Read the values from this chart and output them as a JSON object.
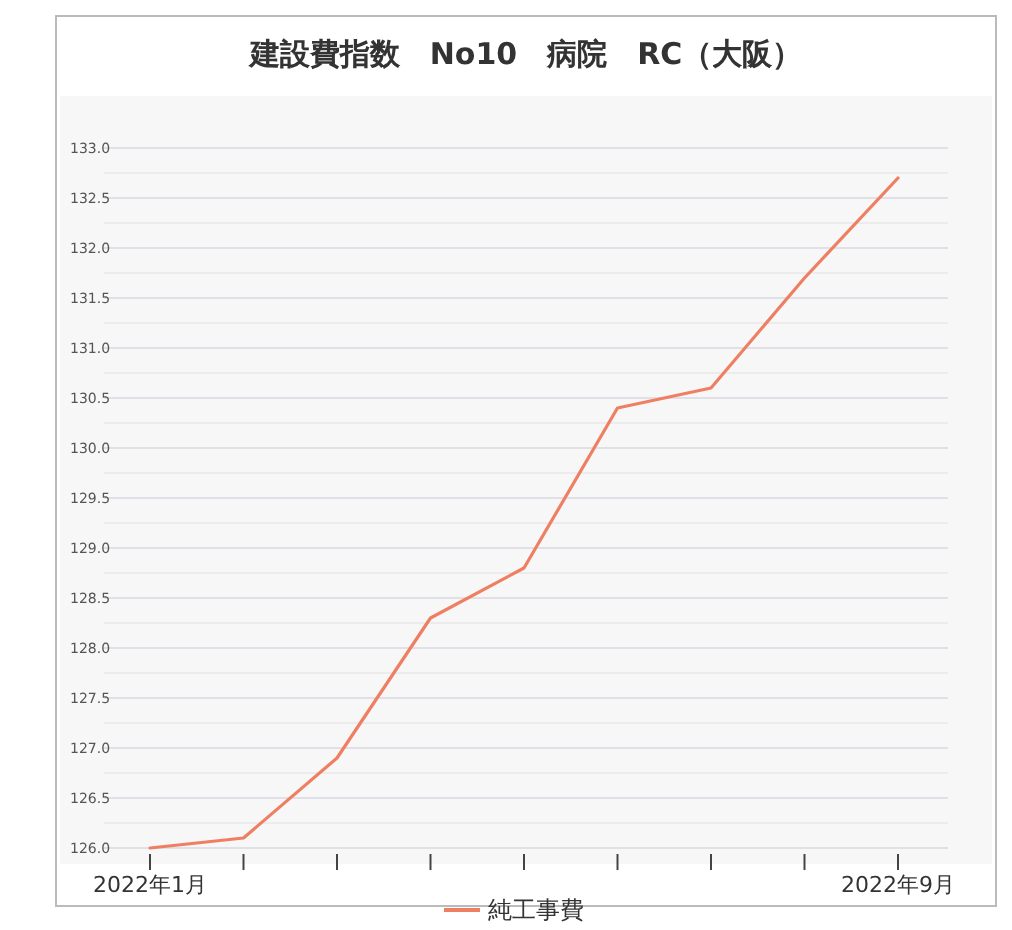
{
  "chart_data": {
    "type": "line",
    "title": "建設費指数　No10　病院　RC（大阪）",
    "categories": [
      "2022年1月",
      null,
      null,
      null,
      null,
      null,
      null,
      null,
      "2022年9月"
    ],
    "series": [
      {
        "name": "純工事費",
        "color": "#ef7f63",
        "values": [
          126.0,
          126.1,
          126.9,
          128.3,
          128.8,
          130.4,
          130.6,
          131.7,
          132.7
        ]
      }
    ],
    "ylim": [
      126.0,
      133.0
    ],
    "yticks": [
      {
        "value": 126.0,
        "label": "126.0"
      },
      {
        "value": 126.25,
        "label": null
      },
      {
        "value": 126.5,
        "label": "126.5"
      },
      {
        "value": 126.75,
        "label": null
      },
      {
        "value": 127.0,
        "label": "127.0"
      },
      {
        "value": 127.25,
        "label": null
      },
      {
        "value": 127.5,
        "label": "127.5"
      },
      {
        "value": 127.75,
        "label": null
      },
      {
        "value": 128.0,
        "label": "128.0"
      },
      {
        "value": 128.25,
        "label": null
      },
      {
        "value": 128.5,
        "label": "128.5"
      },
      {
        "value": 128.75,
        "label": null
      },
      {
        "value": 129.0,
        "label": "129.0"
      },
      {
        "value": 129.25,
        "label": null
      },
      {
        "value": 129.5,
        "label": "129.5"
      },
      {
        "value": 129.75,
        "label": null
      },
      {
        "value": 130.0,
        "label": "130.0"
      },
      {
        "value": 130.25,
        "label": null
      },
      {
        "value": 130.5,
        "label": "130.5"
      },
      {
        "value": 130.75,
        "label": null
      },
      {
        "value": 131.0,
        "label": "131.0"
      },
      {
        "value": 131.25,
        "label": null
      },
      {
        "value": 131.5,
        "label": "131.5"
      },
      {
        "value": 131.75,
        "label": null
      },
      {
        "value": 132.0,
        "label": "132.0"
      },
      {
        "value": 132.25,
        "label": null
      },
      {
        "value": 132.5,
        "label": "132.5"
      },
      {
        "value": 132.75,
        "label": null
      },
      {
        "value": 133.0,
        "label": "133.0"
      }
    ],
    "grid": "y",
    "legend": "bottom",
    "marker": "none",
    "line_style": "solid"
  }
}
